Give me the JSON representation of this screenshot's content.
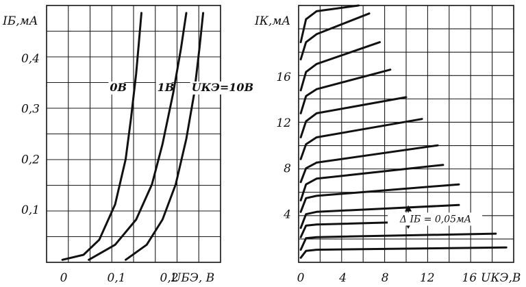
{
  "chart_data": [
    {
      "type": "line",
      "id": "input",
      "ylabel": "IБ,мА",
      "xlabel": "UБЭ, В",
      "x_tick_labels": [
        {
          "value": 0,
          "label": "0"
        },
        {
          "value": 0.1,
          "label": "0,1"
        },
        {
          "value": 0.2,
          "label": "0,2"
        }
      ],
      "y_tick_labels": [
        {
          "value": 0.1,
          "label": "0,1"
        },
        {
          "value": 0.2,
          "label": "0,2"
        },
        {
          "value": 0.3,
          "label": "0,3"
        },
        {
          "value": 0.4,
          "label": "0,4"
        }
      ],
      "xlim": [
        -0.03,
        0.3
      ],
      "ylim": [
        -0.005,
        0.505
      ],
      "grid": true,
      "series": [
        {
          "name": "0В",
          "label_at": [
            0.09,
            0.335
          ],
          "points": [
            [
              0.0,
              0.0
            ],
            [
              0.04,
              0.01
            ],
            [
              0.07,
              0.04
            ],
            [
              0.1,
              0.11
            ],
            [
              0.12,
              0.2
            ],
            [
              0.13,
              0.28
            ],
            [
              0.14,
              0.37
            ],
            [
              0.145,
              0.43
            ],
            [
              0.15,
              0.49
            ]
          ]
        },
        {
          "name": "1В",
          "label_at": [
            0.18,
            0.335
          ],
          "points": [
            [
              0.05,
              0.0
            ],
            [
              0.1,
              0.03
            ],
            [
              0.14,
              0.08
            ],
            [
              0.17,
              0.15
            ],
            [
              0.19,
              0.23
            ],
            [
              0.21,
              0.33
            ],
            [
              0.225,
              0.42
            ],
            [
              0.235,
              0.49
            ]
          ]
        },
        {
          "name": "UКЭ=10В",
          "label_at": [
            0.245,
            0.335
          ],
          "points": [
            [
              0.12,
              0.0
            ],
            [
              0.16,
              0.03
            ],
            [
              0.19,
              0.08
            ],
            [
              0.215,
              0.15
            ],
            [
              0.235,
              0.24
            ],
            [
              0.25,
              0.33
            ],
            [
              0.26,
              0.42
            ],
            [
              0.267,
              0.49
            ]
          ]
        }
      ]
    },
    {
      "type": "line",
      "id": "output",
      "ylabel": "IК,мА",
      "xlabel": "UКЭ,В",
      "x_tick_labels": [
        {
          "value": 0,
          "label": "0"
        },
        {
          "value": 4,
          "label": "4"
        },
        {
          "value": 8,
          "label": "8"
        },
        {
          "value": 12,
          "label": "12"
        },
        {
          "value": 16,
          "label": "16"
        }
      ],
      "y_tick_labels": [
        {
          "value": 4,
          "label": "4"
        },
        {
          "value": 8,
          "label": "8"
        },
        {
          "value": 12,
          "label": "12"
        },
        {
          "value": 16,
          "label": "16"
        }
      ],
      "xlim": [
        -0.2,
        20.2
      ],
      "ylim": [
        -0.2,
        22.2
      ],
      "grid": true,
      "annotation": {
        "text": "Δ IБ = 0,05мА",
        "x": 12.8,
        "y": 3.3,
        "arrow_x": 10.2,
        "arrow_from": 2.8,
        "arrow_to": 4.7
      },
      "series": [
        {
          "name": "",
          "x_end": 19.5,
          "points": [
            [
              0,
              0.2
            ],
            [
              0.5,
              0.8
            ],
            [
              1.5,
              0.9
            ],
            [
              19.5,
              1.1
            ]
          ]
        },
        {
          "name": "",
          "x_end": 18.5,
          "points": [
            [
              0,
              0.9
            ],
            [
              0.5,
              1.9
            ],
            [
              1.5,
              2.0
            ],
            [
              18.5,
              2.3
            ]
          ]
        },
        {
          "name": "",
          "x_end": 17.0,
          "points": [
            [
              0,
              2.0
            ],
            [
              0.5,
              3.0
            ],
            [
              1.5,
              3.1
            ],
            [
              17.0,
              3.5
            ]
          ]
        },
        {
          "name": "",
          "x_end": 15.0,
          "points": [
            [
              0,
              2.8
            ],
            [
              0.5,
              4.0
            ],
            [
              1.5,
              4.2
            ],
            [
              15.0,
              4.8
            ]
          ]
        },
        {
          "name": "",
          "x_end": 15.0,
          "points": [
            [
              0,
              4.2
            ],
            [
              0.5,
              5.4
            ],
            [
              1.5,
              5.6
            ],
            [
              15.0,
              6.6
            ]
          ]
        },
        {
          "name": "",
          "x_end": 13.5,
          "points": [
            [
              0,
              5.2
            ],
            [
              0.5,
              6.6
            ],
            [
              1.5,
              7.1
            ],
            [
              13.5,
              8.3
            ]
          ]
        },
        {
          "name": "",
          "x_end": 13.0,
          "points": [
            [
              0,
              6.8
            ],
            [
              0.5,
              8.0
            ],
            [
              1.5,
              8.5
            ],
            [
              13.0,
              10.0
            ]
          ]
        },
        {
          "name": "",
          "x_end": 11.5,
          "points": [
            [
              0,
              8.8
            ],
            [
              0.5,
              10.1
            ],
            [
              1.5,
              10.7
            ],
            [
              11.5,
              12.3
            ]
          ]
        },
        {
          "name": "",
          "x_end": 10.0,
          "points": [
            [
              0,
              10.7
            ],
            [
              0.5,
              12.1
            ],
            [
              1.5,
              12.8
            ],
            [
              10.0,
              14.2
            ]
          ]
        },
        {
          "name": "",
          "x_end": 8.5,
          "points": [
            [
              0,
              12.8
            ],
            [
              0.5,
              14.3
            ],
            [
              1.5,
              14.9
            ],
            [
              8.5,
              16.6
            ]
          ]
        },
        {
          "name": "",
          "x_end": 7.5,
          "points": [
            [
              0,
              14.8
            ],
            [
              0.5,
              16.4
            ],
            [
              1.5,
              17.1
            ],
            [
              7.5,
              19.0
            ]
          ]
        },
        {
          "name": "",
          "x_end": 6.5,
          "points": [
            [
              0,
              17.5
            ],
            [
              0.5,
              19.0
            ],
            [
              1.5,
              19.7
            ],
            [
              6.5,
              21.5
            ]
          ]
        },
        {
          "name": "",
          "x_end": 5.5,
          "points": [
            [
              0,
              19.0
            ],
            [
              0.5,
              21.0
            ],
            [
              1.5,
              21.7
            ],
            [
              5.5,
              23.1
            ]
          ]
        }
      ]
    }
  ]
}
